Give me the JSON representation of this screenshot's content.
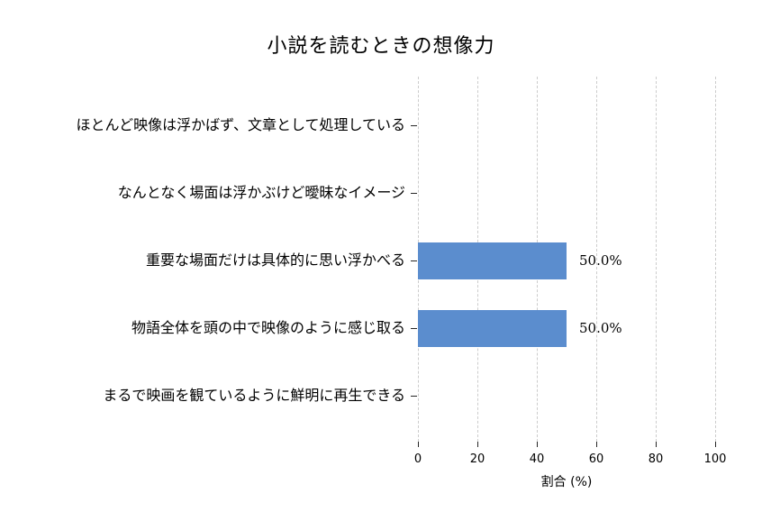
{
  "chart_data": {
    "type": "bar",
    "orientation": "horizontal",
    "title": "小説を読むときの想像力",
    "xlabel": "割合 (%)",
    "categories": [
      "ほとんど映像は浮かばず、文章として処理している",
      "なんとなく場面は浮かぶけど曖昧なイメージ",
      "重要な場面だけは具体的に思い浮かべる",
      "物語全体を頭の中で映像のように感じ取る",
      "まるで映画を観ているように鮮明に再生できる"
    ],
    "values": [
      0,
      0,
      50.0,
      50.0,
      0
    ],
    "bar_labels": [
      "",
      "",
      "50.0%",
      "50.0%",
      ""
    ],
    "xlim": [
      0,
      100
    ],
    "xticks": [
      0,
      20,
      40,
      60,
      80,
      100
    ],
    "grid": "vertical-dashed",
    "legend": "none",
    "colors": {
      "bar": "#5B8DCE",
      "grid": "#cccccc",
      "tick": "#262626",
      "text": "#000000",
      "background": "#ffffff"
    }
  }
}
